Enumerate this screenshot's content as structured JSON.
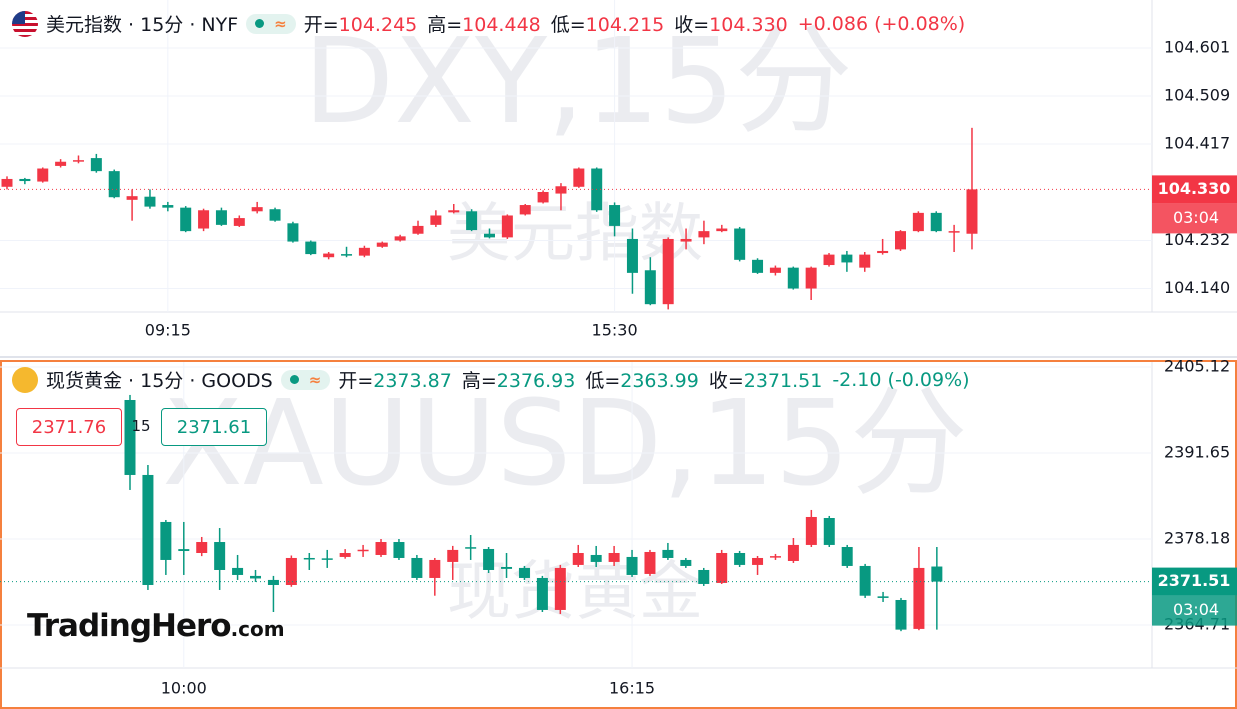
{
  "chart_data": [
    {
      "type": "candlestick",
      "title": "美元指数 · 15分 · NYF",
      "watermark": "DXY,15分",
      "watermark_sub": "美元指数",
      "legend": [
        {
          "label": "开=",
          "value": "104.245"
        },
        {
          "label": "高=",
          "value": "104.448"
        },
        {
          "label": "低=",
          "value": "104.215"
        },
        {
          "label": "收=",
          "value": "104.330"
        }
      ],
      "change": "+0.086 (+0.08%)",
      "legend_color": "#f23645",
      "up_color": "#f23645",
      "down_color": "#089981",
      "categories": [
        null,
        null,
        null,
        null,
        null,
        null,
        null,
        null,
        null,
        "09:15",
        null,
        null,
        null,
        null,
        null,
        null,
        null,
        null,
        null,
        null,
        null,
        null,
        null,
        null,
        null,
        null,
        null,
        null,
        null,
        null,
        null,
        null,
        null,
        null,
        "15:30",
        null,
        null,
        null,
        null,
        null,
        null,
        null,
        null,
        null,
        null,
        null,
        null,
        null,
        null,
        null,
        null,
        null,
        null,
        null,
        null
      ],
      "open": [
        104.335,
        104.35,
        104.345,
        104.375,
        104.384,
        104.39,
        104.365,
        104.31,
        104.316,
        104.3,
        104.295,
        104.255,
        104.29,
        104.26,
        104.288,
        104.292,
        104.265,
        104.23,
        104.2,
        104.206,
        104.203,
        104.22,
        104.232,
        104.245,
        104.262,
        104.286,
        104.288,
        104.245,
        104.238,
        104.282,
        104.305,
        104.322,
        104.335,
        104.37,
        104.3,
        104.235,
        104.175,
        104.11,
        104.23,
        104.238,
        104.25,
        104.255,
        104.195,
        104.17,
        104.18,
        104.14,
        104.185,
        104.205,
        104.18,
        104.208,
        104.215,
        104.25,
        104.285,
        104.248,
        104.245
      ],
      "high": [
        104.355,
        104.352,
        104.372,
        104.388,
        104.395,
        104.398,
        104.368,
        104.33,
        104.33,
        104.306,
        104.298,
        104.293,
        104.295,
        104.28,
        104.306,
        104.295,
        104.268,
        104.232,
        104.21,
        104.22,
        104.222,
        104.23,
        104.243,
        104.27,
        104.29,
        104.302,
        104.292,
        104.255,
        104.282,
        104.302,
        104.328,
        104.342,
        104.372,
        104.372,
        104.305,
        104.255,
        104.2,
        104.238,
        104.255,
        104.27,
        104.262,
        104.258,
        104.198,
        104.184,
        104.182,
        104.182,
        104.208,
        104.212,
        104.21,
        104.235,
        104.252,
        104.288,
        104.288,
        104.262,
        104.448
      ],
      "low": [
        104.33,
        104.34,
        104.343,
        104.372,
        104.38,
        104.362,
        104.313,
        104.27,
        104.293,
        104.288,
        104.248,
        104.25,
        104.26,
        104.258,
        104.284,
        104.268,
        104.228,
        104.204,
        104.196,
        104.2,
        104.2,
        104.218,
        104.23,
        104.243,
        104.258,
        104.284,
        104.25,
        104.236,
        104.235,
        104.28,
        104.303,
        104.29,
        104.333,
        104.287,
        104.24,
        104.13,
        104.108,
        104.1,
        104.215,
        104.225,
        104.248,
        104.192,
        104.168,
        104.165,
        104.138,
        104.118,
        104.182,
        104.172,
        104.172,
        104.205,
        104.212,
        104.248,
        104.248,
        104.21,
        104.215
      ],
      "close": [
        104.35,
        104.346,
        104.37,
        104.383,
        104.386,
        104.365,
        104.315,
        104.317,
        104.297,
        104.295,
        104.25,
        104.29,
        104.262,
        104.275,
        104.296,
        104.27,
        104.23,
        104.206,
        104.207,
        104.203,
        104.218,
        104.228,
        104.24,
        104.26,
        104.28,
        104.29,
        104.252,
        104.238,
        104.28,
        104.3,
        104.325,
        104.336,
        104.37,
        104.29,
        104.26,
        104.17,
        104.11,
        104.235,
        104.235,
        104.25,
        104.255,
        104.195,
        104.17,
        104.18,
        104.14,
        104.18,
        104.205,
        104.19,
        104.205,
        104.212,
        104.25,
        104.285,
        104.25,
        104.25,
        104.33
      ],
      "ylim": [
        104.095,
        104.693
      ],
      "yticks": [
        104.601,
        104.509,
        104.417,
        104.232,
        {
          "value": 104.14,
          "label": "104.140"
        }
      ],
      "grid": true,
      "last_price": {
        "value": 104.33,
        "label": "104.330"
      },
      "countdown": "03:04"
    },
    {
      "type": "candlestick",
      "title": "现货黄金 · 15分 · GOODS",
      "watermark": "XAUUSD,15分",
      "watermark_sub": "现货黄金",
      "legend": [
        {
          "label": "开=",
          "value": "2373.87"
        },
        {
          "label": "高=",
          "value": "2376.93"
        },
        {
          "label": "低=",
          "value": "2363.99"
        },
        {
          "label": "收=",
          "value": "2371.51"
        }
      ],
      "change": "-2.10 (-0.09%)",
      "legend_color": "#089981",
      "up_color": "#f23645",
      "down_color": "#089981",
      "trade_buttons": {
        "sell": "2371.76",
        "spread": "15",
        "buy": "2371.61"
      },
      "logo": "TradingHero",
      "logo_suffix": ".com",
      "categories": [
        null,
        null,
        null,
        "10:00",
        null,
        null,
        null,
        null,
        null,
        null,
        null,
        null,
        null,
        null,
        null,
        null,
        null,
        null,
        null,
        null,
        null,
        null,
        null,
        null,
        null,
        null,
        null,
        null,
        "16:15",
        null,
        null,
        null,
        null,
        null,
        null,
        null,
        null,
        null,
        null,
        null,
        null,
        null,
        null,
        null,
        null,
        null
      ],
      "open": [
        2399.95,
        2388.21,
        2380.85,
        2376.6,
        2375.99,
        2377.71,
        2373.65,
        2372.4,
        2371.77,
        2370.98,
        2375.21,
        2375.15,
        2375.37,
        2376.4,
        2375.68,
        2377.71,
        2375.21,
        2372.08,
        2374.59,
        2376.9,
        2376.62,
        2373.8,
        2373.65,
        2372.08,
        2367.07,
        2374.12,
        2375.68,
        2374.59,
        2375.37,
        2372.71,
        2376.47,
        2374.9,
        2373.33,
        2371.3,
        2375.99,
        2374.12,
        2375.37,
        2374.74,
        2377.25,
        2381.47,
        2376.93,
        2373.96,
        2369.2,
        2368.63,
        2364.1,
        2373.87
      ],
      "high": [
        2400.74,
        2389.77,
        2381.16,
        2380.85,
        2378.5,
        2379.9,
        2375.68,
        2373.33,
        2372.4,
        2375.6,
        2375.99,
        2376.47,
        2376.6,
        2377.25,
        2378.18,
        2378.18,
        2375.68,
        2375.21,
        2377.1,
        2378.81,
        2376.93,
        2375.99,
        2373.96,
        2372.4,
        2374.12,
        2377.25,
        2377.09,
        2377.09,
        2376.47,
        2376.47,
        2377.56,
        2375.21,
        2373.65,
        2376.47,
        2376.31,
        2375.52,
        2375.84,
        2378.34,
        2382.73,
        2381.79,
        2377.25,
        2374.28,
        2369.89,
        2368.95,
        2376.93,
        2376.93
      ],
      "low": [
        2385.86,
        2370.2,
        2372.55,
        2372.55,
        2375.5,
        2370.2,
        2371.77,
        2371.46,
        2366.75,
        2370.7,
        2373.33,
        2373.65,
        2375.1,
        2375.37,
        2375.37,
        2374.9,
        2371.77,
        2369.3,
        2371.77,
        2374.9,
        2372.86,
        2372.08,
        2371.77,
        2366.75,
        2366.44,
        2373.8,
        2373.8,
        2373.96,
        2372.24,
        2372.4,
        2374.9,
        2373.65,
        2370.83,
        2371.14,
        2373.8,
        2372.55,
        2374.9,
        2374.43,
        2376.93,
        2376.93,
        2373.65,
        2368.95,
        2368.32,
        2363.75,
        2363.9,
        2363.99
      ],
      "close": [
        2388.21,
        2370.98,
        2374.9,
        2376.3,
        2377.71,
        2373.33,
        2372.55,
        2372.0,
        2370.98,
        2375.21,
        2375.1,
        2375.05,
        2375.99,
        2376.5,
        2377.71,
        2375.21,
        2372.08,
        2374.9,
        2376.47,
        2376.75,
        2373.33,
        2373.5,
        2372.08,
        2367.07,
        2373.65,
        2375.99,
        2374.59,
        2375.99,
        2372.55,
        2376.15,
        2375.21,
        2373.96,
        2371.14,
        2375.99,
        2374.12,
        2375.21,
        2375.5,
        2377.25,
        2381.63,
        2377.25,
        2373.96,
        2369.3,
        2368.95,
        2363.99,
        2373.65,
        2371.51
      ],
      "ylim": [
        2357.98,
        2405.9
      ],
      "yticks": [
        2405.12,
        2391.65,
        2378.18,
        2364.71
      ],
      "grid": true,
      "last_price": 2371.51,
      "countdown": "03:04"
    }
  ]
}
